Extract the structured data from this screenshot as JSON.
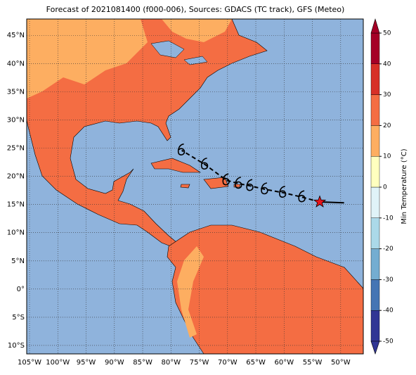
{
  "chart_data": {
    "type": "map",
    "title": "Forecast of 2021081400 (f000-006), Sources: GDACS (TC track), GFS (Meteo)",
    "xlim": [
      -105.5,
      -46
    ],
    "ylim": [
      -11.5,
      47.9
    ],
    "xticks": [
      {
        "value": -105,
        "label": "105°W"
      },
      {
        "value": -100,
        "label": "100°W"
      },
      {
        "value": -95,
        "label": "95°W"
      },
      {
        "value": -90,
        "label": "90°W"
      },
      {
        "value": -85,
        "label": "85°W"
      },
      {
        "value": -80,
        "label": "80°W"
      },
      {
        "value": -75,
        "label": "75°W"
      },
      {
        "value": -70,
        "label": "70°W"
      },
      {
        "value": -65,
        "label": "65°W"
      },
      {
        "value": -60,
        "label": "60°W"
      },
      {
        "value": -55,
        "label": "55°W"
      },
      {
        "value": -50,
        "label": "50°W"
      }
    ],
    "yticks": [
      {
        "value": 45,
        "label": "45°N"
      },
      {
        "value": 40,
        "label": "40°N"
      },
      {
        "value": 35,
        "label": "35°N"
      },
      {
        "value": 30,
        "label": "30°N"
      },
      {
        "value": 25,
        "label": "25°N"
      },
      {
        "value": 20,
        "label": "20°N"
      },
      {
        "value": 15,
        "label": "15°N"
      },
      {
        "value": 10,
        "label": "10°N"
      },
      {
        "value": 5,
        "label": "5°N"
      },
      {
        "value": 0,
        "label": "0°"
      },
      {
        "value": -5,
        "label": "5°S"
      },
      {
        "value": -10,
        "label": "10°S"
      }
    ],
    "grid": true,
    "track": {
      "past_lon": [
        -49.4,
        -53.7
      ],
      "past_lat": [
        15.3,
        15.45
      ],
      "lon": [
        -53.7,
        -56.8,
        -60.2,
        -63.4,
        -66,
        -68,
        -70.2,
        -74,
        -78.1
      ],
      "lat": [
        15.45,
        16.3,
        17.1,
        17.7,
        18.3,
        18.7,
        19.3,
        22.1,
        24.6
      ]
    },
    "colorbar": {
      "label": "Min Temperature (°C)",
      "lim": [
        -50,
        50
      ],
      "ticks": [
        50,
        40,
        30,
        20,
        10,
        0,
        -10,
        -20,
        -30,
        -40,
        -50
      ],
      "colors": [
        "#313695",
        "#4575b4",
        "#74add1",
        "#abd9e9",
        "#e0f3f8",
        "#ffffbf",
        "#fdae61",
        "#f46d43",
        "#d73027",
        "#a50026"
      ]
    }
  }
}
